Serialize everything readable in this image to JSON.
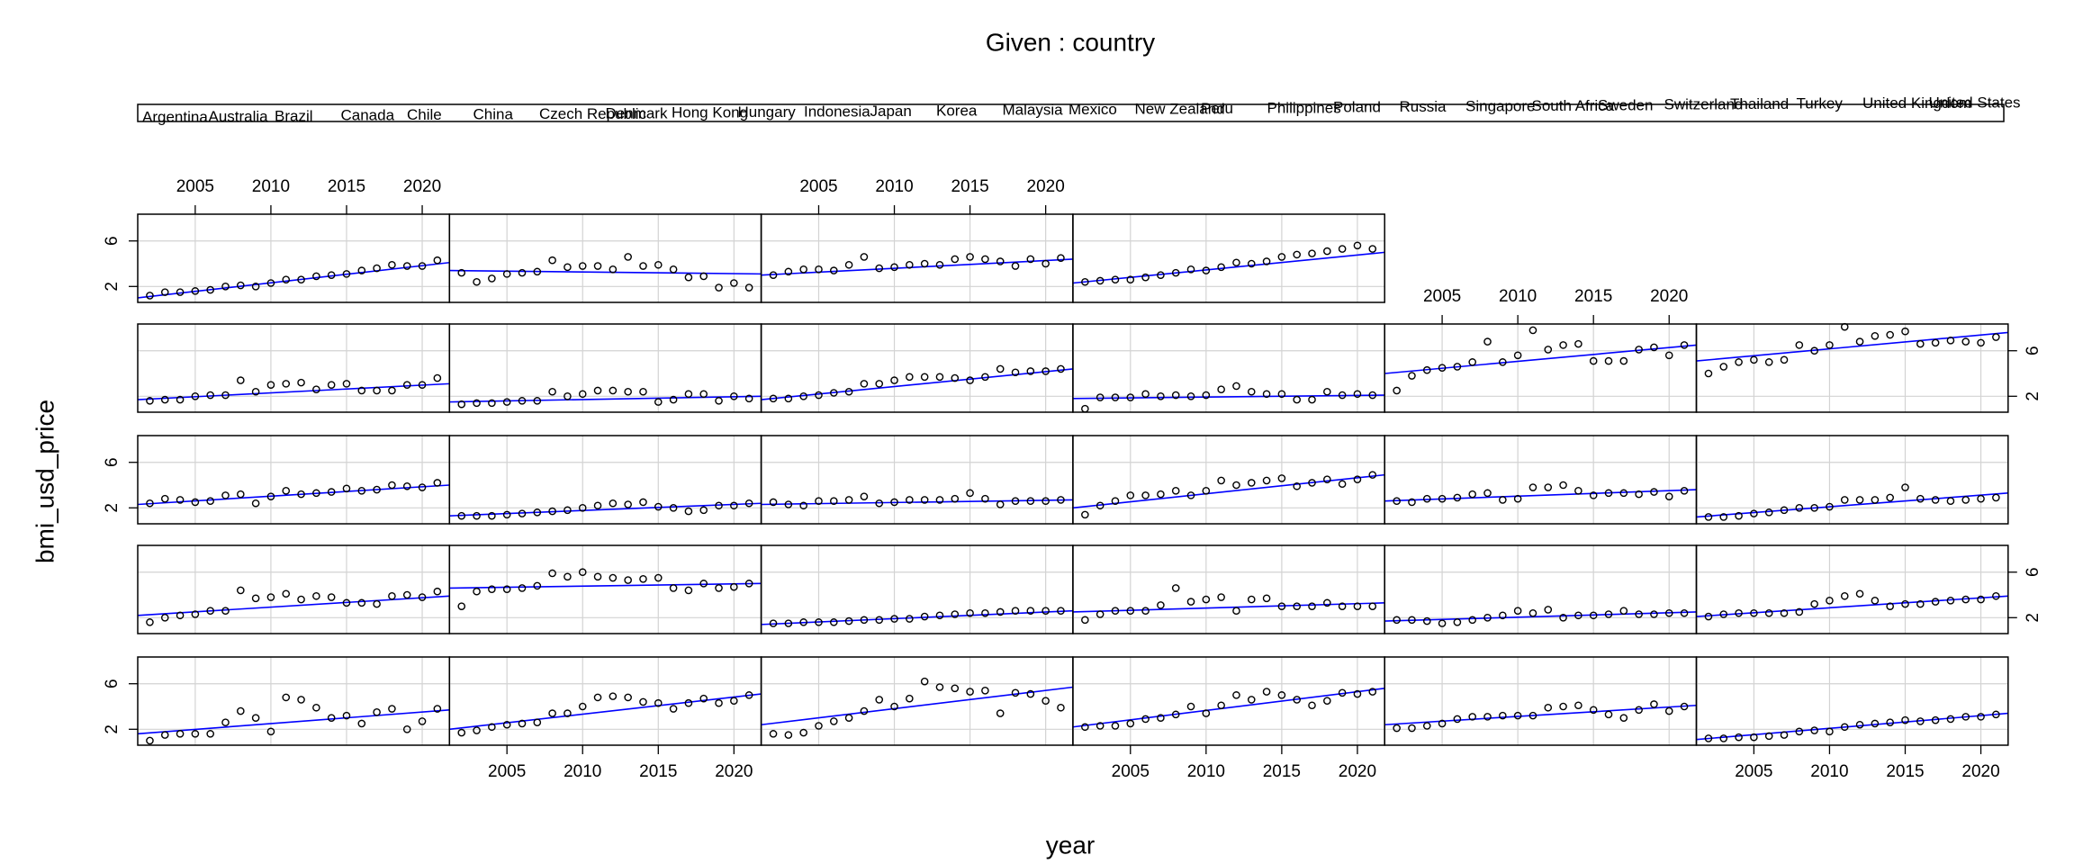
{
  "chart_data": {
    "type": "coplot",
    "title": "Given : country",
    "x_label": "year",
    "y_label": "bmi_usd_price",
    "x": [
      2002,
      2003,
      2004,
      2005,
      2006,
      2007,
      2008,
      2009,
      2010,
      2011,
      2012,
      2013,
      2014,
      2015,
      2016,
      2017,
      2018,
      2019,
      2020,
      2021
    ],
    "xlim": [
      2001.2,
      2021.8
    ],
    "ylim": [
      0.6,
      8.35
    ],
    "xticks": [
      2005,
      2010,
      2015,
      2020
    ],
    "yticks": [
      2,
      6
    ],
    "grid": true,
    "point_color": "#000000",
    "fit_color": "#0000ff",
    "series": [
      {
        "name": "Argentina",
        "values": [
          1.0,
          1.5,
          1.6,
          1.6,
          1.6,
          2.6,
          3.6,
          3.0,
          1.8,
          4.8,
          4.6,
          3.9,
          3.0,
          3.2,
          2.5,
          3.5,
          3.8,
          2.0,
          2.7,
          3.8
        ],
        "fit": [
          1.6,
          3.7
        ]
      },
      {
        "name": "Australia",
        "values": [
          1.7,
          1.9,
          2.2,
          2.4,
          2.5,
          2.6,
          3.4,
          3.4,
          4.0,
          4.8,
          4.9,
          4.8,
          4.4,
          4.3,
          3.8,
          4.3,
          4.7,
          4.3,
          4.5,
          5.0
        ],
        "fit": [
          2.0,
          5.1
        ]
      },
      {
        "name": "Brazil",
        "values": [
          1.6,
          1.5,
          1.7,
          2.3,
          2.7,
          3.0,
          3.6,
          4.6,
          4.0,
          4.7,
          6.2,
          5.7,
          5.6,
          5.3,
          5.4,
          3.4,
          5.2,
          5.1,
          4.5,
          3.9
        ],
        "fit": [
          2.4,
          5.7
        ]
      },
      {
        "name": "Canada",
        "values": [
          2.2,
          2.3,
          2.3,
          2.5,
          2.9,
          3.0,
          3.3,
          4.0,
          3.4,
          4.1,
          5.0,
          4.6,
          5.3,
          5.0,
          4.6,
          4.1,
          4.5,
          5.2,
          5.1,
          5.3
        ],
        "fit": [
          2.2,
          5.6
        ]
      },
      {
        "name": "Chile",
        "values": [
          2.1,
          2.1,
          2.3,
          2.5,
          2.9,
          3.1,
          3.1,
          3.2,
          3.2,
          3.2,
          3.9,
          4.0,
          4.1,
          3.7,
          3.3,
          3.0,
          3.7,
          4.2,
          3.6,
          4.0
        ],
        "fit": [
          2.4,
          4.1
        ]
      },
      {
        "name": "China",
        "values": [
          1.2,
          1.2,
          1.3,
          1.3,
          1.4,
          1.5,
          1.8,
          1.9,
          1.8,
          2.2,
          2.4,
          2.5,
          2.6,
          2.8,
          2.7,
          2.8,
          2.9,
          3.1,
          3.1,
          3.3
        ],
        "fit": [
          1.1,
          3.4
        ]
      },
      {
        "name": "Czech Republic",
        "values": [
          1.6,
          2.0,
          2.2,
          2.3,
          2.6,
          2.6,
          4.4,
          3.7,
          3.8,
          4.1,
          3.6,
          3.9,
          3.8,
          3.3,
          3.3,
          3.2,
          3.9,
          4.0,
          3.8,
          4.3
        ],
        "fit": [
          2.2,
          3.9
        ]
      },
      {
        "name": "Denmark",
        "values": [
          3.0,
          4.3,
          4.5,
          4.5,
          4.6,
          4.8,
          5.9,
          5.6,
          6.0,
          5.6,
          5.5,
          5.3,
          5.4,
          5.5,
          4.6,
          4.4,
          5.0,
          4.6,
          4.7,
          5.0
        ],
        "fit": [
          4.6,
          5.0
        ]
      },
      {
        "name": "Hong Kong",
        "values": [
          1.5,
          1.5,
          1.6,
          1.6,
          1.6,
          1.7,
          1.8,
          1.8,
          1.9,
          1.9,
          2.1,
          2.2,
          2.3,
          2.4,
          2.4,
          2.5,
          2.6,
          2.6,
          2.6,
          2.6
        ],
        "fit": [
          1.4,
          2.6
        ]
      },
      {
        "name": "Hungary",
        "values": [
          1.8,
          2.3,
          2.6,
          2.6,
          2.6,
          3.1,
          4.6,
          3.4,
          3.6,
          3.8,
          2.6,
          3.6,
          3.7,
          3.0,
          3.0,
          3.0,
          3.3,
          3.0,
          3.0,
          3.0
        ],
        "fit": [
          2.5,
          3.3
        ]
      },
      {
        "name": "Indonesia",
        "values": [
          1.8,
          1.8,
          1.7,
          1.5,
          1.6,
          1.8,
          2.0,
          2.2,
          2.6,
          2.4,
          2.7,
          2.0,
          2.2,
          2.2,
          2.3,
          2.6,
          2.3,
          2.3,
          2.4,
          2.4
        ],
        "fit": [
          1.7,
          2.5
        ]
      },
      {
        "name": "Japan",
        "values": [
          2.1,
          2.3,
          2.4,
          2.4,
          2.4,
          2.4,
          2.5,
          3.2,
          3.5,
          3.9,
          4.1,
          3.5,
          3.0,
          3.2,
          3.2,
          3.4,
          3.5,
          3.6,
          3.6,
          3.9
        ],
        "fit": [
          2.1,
          3.9
        ]
      },
      {
        "name": "Korea",
        "values": [
          2.4,
          2.8,
          2.7,
          2.5,
          2.6,
          3.1,
          3.2,
          2.4,
          3.0,
          3.5,
          3.2,
          3.3,
          3.4,
          3.7,
          3.5,
          3.6,
          4.0,
          3.9,
          3.8,
          4.2
        ],
        "fit": [
          2.3,
          4.0
        ]
      },
      {
        "name": "Malaysia",
        "values": [
          1.3,
          1.3,
          1.3,
          1.4,
          1.5,
          1.6,
          1.7,
          1.8,
          2.0,
          2.2,
          2.4,
          2.3,
          2.5,
          2.1,
          2.0,
          1.7,
          1.8,
          2.2,
          2.2,
          2.4
        ],
        "fit": [
          1.3,
          2.4
        ]
      },
      {
        "name": "Mexico",
        "values": [
          2.5,
          2.3,
          2.2,
          2.6,
          2.6,
          2.7,
          3.0,
          2.4,
          2.5,
          2.7,
          2.7,
          2.7,
          2.8,
          3.3,
          2.8,
          2.3,
          2.6,
          2.6,
          2.6,
          2.7
        ],
        "fit": [
          2.3,
          2.7
        ]
      },
      {
        "name": "New Zealand",
        "values": [
          1.4,
          2.2,
          2.6,
          3.1,
          3.1,
          3.2,
          3.5,
          3.1,
          3.5,
          4.4,
          4.0,
          4.2,
          4.4,
          4.6,
          3.9,
          4.2,
          4.5,
          4.1,
          4.5,
          4.9
        ],
        "fit": [
          2.0,
          4.9
        ]
      },
      {
        "name": "Peru",
        "values": [
          2.6,
          2.5,
          2.8,
          2.8,
          2.9,
          3.2,
          3.3,
          2.7,
          2.8,
          3.8,
          3.8,
          4.0,
          3.5,
          3.1,
          3.3,
          3.3,
          3.2,
          3.4,
          3.0,
          3.5
        ],
        "fit": [
          2.6,
          3.6
        ]
      },
      {
        "name": "Philippines",
        "values": [
          1.2,
          1.2,
          1.3,
          1.5,
          1.6,
          1.8,
          2.0,
          2.0,
          2.1,
          2.7,
          2.7,
          2.7,
          2.9,
          3.8,
          2.8,
          2.7,
          2.6,
          2.7,
          2.8,
          2.9
        ],
        "fit": [
          1.2,
          3.3
        ]
      },
      {
        "name": "Poland",
        "values": [
          1.6,
          1.7,
          1.7,
          2.0,
          2.1,
          2.1,
          3.4,
          2.4,
          3.0,
          3.1,
          3.2,
          2.6,
          3.0,
          3.1,
          2.5,
          2.5,
          2.5,
          3.0,
          3.0,
          3.6
        ],
        "fit": [
          1.7,
          3.1
        ]
      },
      {
        "name": "Russia",
        "values": [
          1.3,
          1.4,
          1.4,
          1.5,
          1.6,
          1.6,
          2.4,
          2.0,
          2.2,
          2.5,
          2.5,
          2.4,
          2.4,
          1.5,
          1.7,
          2.2,
          2.2,
          1.6,
          2.0,
          1.8
        ],
        "fit": [
          1.5,
          2.0
        ]
      },
      {
        "name": "Singapore",
        "values": [
          1.8,
          1.8,
          2.0,
          2.1,
          2.3,
          2.4,
          3.1,
          3.1,
          3.4,
          3.7,
          3.7,
          3.7,
          3.6,
          3.4,
          3.7,
          4.4,
          4.1,
          4.2,
          4.2,
          4.4
        ],
        "fit": [
          1.7,
          4.4
        ]
      },
      {
        "name": "South Africa",
        "values": [
          0.9,
          1.9,
          1.9,
          1.9,
          2.2,
          2.0,
          2.1,
          2.0,
          2.1,
          2.6,
          2.9,
          2.4,
          2.2,
          2.2,
          1.7,
          1.7,
          2.4,
          2.1,
          2.2,
          2.1
        ],
        "fit": [
          1.8,
          2.1
        ]
      },
      {
        "name": "Sweden",
        "values": [
          2.5,
          3.8,
          4.3,
          4.5,
          4.6,
          5.0,
          6.8,
          5.0,
          5.6,
          7.8,
          6.1,
          6.5,
          6.6,
          5.1,
          5.1,
          5.1,
          6.1,
          6.3,
          5.6,
          6.5
        ],
        "fit": [
          4.0,
          6.5
        ]
      },
      {
        "name": "Switzerland",
        "values": [
          4.0,
          4.6,
          5.0,
          5.2,
          5.0,
          5.2,
          6.5,
          6.0,
          6.5,
          8.1,
          6.8,
          7.3,
          7.4,
          7.7,
          6.6,
          6.7,
          6.9,
          6.8,
          6.7,
          7.2
        ],
        "fit": [
          5.1,
          7.6
        ]
      },
      {
        "name": "Thailand",
        "values": [
          1.2,
          1.5,
          1.5,
          1.6,
          1.7,
          2.0,
          2.1,
          2.0,
          2.3,
          2.6,
          2.6,
          2.9,
          3.0,
          3.1,
          3.4,
          3.6,
          3.9,
          3.8,
          3.8,
          4.3
        ],
        "fit": [
          1.0,
          4.1
        ]
      },
      {
        "name": "Turkey",
        "values": [
          3.2,
          2.4,
          2.7,
          3.1,
          3.2,
          3.3,
          4.3,
          3.7,
          3.8,
          3.8,
          3.5,
          4.6,
          3.8,
          3.9,
          3.5,
          2.8,
          2.9,
          1.9,
          2.3,
          1.9
        ],
        "fit": [
          3.4,
          3.1
        ]
      },
      {
        "name": "United Kingdom",
        "values": [
          3.0,
          3.3,
          3.5,
          3.5,
          3.4,
          3.9,
          4.6,
          3.6,
          3.7,
          3.9,
          4.0,
          3.9,
          4.4,
          4.6,
          4.4,
          4.2,
          3.8,
          4.4,
          4.0,
          4.5
        ],
        "fit": [
          3.0,
          4.4
        ]
      },
      {
        "name": "United States",
        "values": [
          2.4,
          2.5,
          2.6,
          2.6,
          2.8,
          3.0,
          3.2,
          3.5,
          3.4,
          3.7,
          4.1,
          4.0,
          4.2,
          4.6,
          4.8,
          4.9,
          5.1,
          5.3,
          5.6,
          5.3
        ],
        "fit": [
          2.3,
          5.0
        ]
      }
    ]
  }
}
